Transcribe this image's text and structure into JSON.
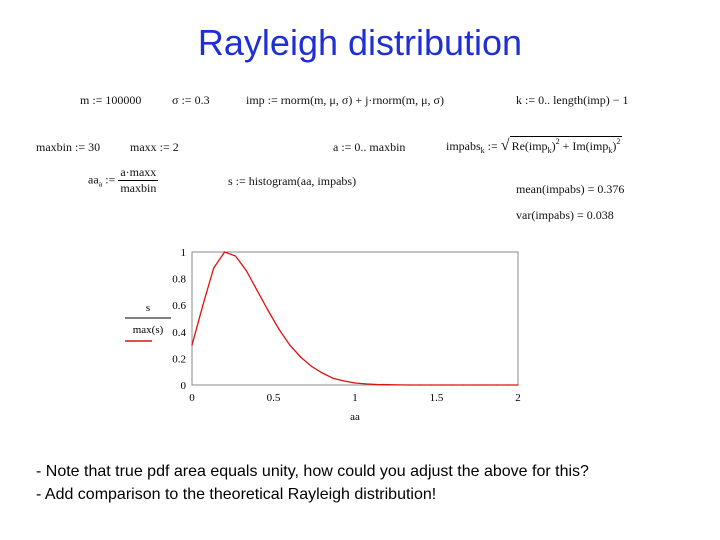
{
  "title": "Rayleigh distribution",
  "defs": {
    "m": "m := 100000",
    "sigma": "σ := 0.3",
    "imp": "imp := rnorm(m, μ, σ) + j·rnorm(m, μ, σ)",
    "k": "k := 0.. length(imp) − 1",
    "maxbin": "maxbin := 30",
    "maxx": "maxx := 2",
    "a": "a := 0.. maxbin",
    "impabs_lhs": "impabs",
    "impabs_sub": "k",
    "impabs_assign": ":=",
    "impabs_re": "Re(imp",
    "impabs_im": "Im(imp",
    "impabs_sub_re": "k",
    "impabs_sub_im": "k",
    "impabs_pow": "2",
    "impabs_close": ")",
    "aa_lhs": "aa",
    "aa_sub": "a",
    "aa_assign": ":=",
    "aa_num": "a·maxx",
    "aa_den": "maxbin",
    "s": "s := histogram(aa, impabs)",
    "mean": "mean(impabs) = 0.376",
    "var": "var(impabs) = 0.038"
  },
  "chart_data": {
    "type": "line",
    "ylabel_num": "s",
    "ylabel_den": "max(s)",
    "xlabel": "aa",
    "xlim": [
      0,
      2
    ],
    "ylim": [
      0,
      1
    ],
    "xticks": [
      "0",
      "0.5",
      "1",
      "1.5",
      "2"
    ],
    "yticks": [
      "0",
      "0.2",
      "0.4",
      "0.6",
      "0.8",
      "1"
    ],
    "series": [
      {
        "color": "#e01010",
        "x": [
          0.0,
          0.0667,
          0.1333,
          0.2,
          0.2667,
          0.3333,
          0.4,
          0.4667,
          0.5333,
          0.6,
          0.6667,
          0.7333,
          0.8,
          0.8667,
          0.9333,
          1.0,
          1.0667,
          1.1333,
          1.2,
          1.2667,
          1.3333,
          1.4,
          1.4667,
          1.5333,
          1.6,
          1.6667,
          1.7333,
          1.8,
          1.8667,
          1.9333,
          2.0
        ],
        "y": [
          0.3,
          0.6,
          0.88,
          1.0,
          0.97,
          0.86,
          0.71,
          0.56,
          0.42,
          0.3,
          0.21,
          0.14,
          0.09,
          0.05,
          0.03,
          0.015,
          0.008,
          0.004,
          0.002,
          0.001,
          0.0,
          0.0,
          0.0,
          0.0,
          0.0,
          0.0,
          0.0,
          0.0,
          0.0,
          0.0,
          0.0
        ]
      }
    ]
  },
  "notes": [
    "- Note that true pdf area equals unity, how could you adjust the above for this?",
    "- Add comparison to the theoretical Rayleigh distribution!"
  ]
}
